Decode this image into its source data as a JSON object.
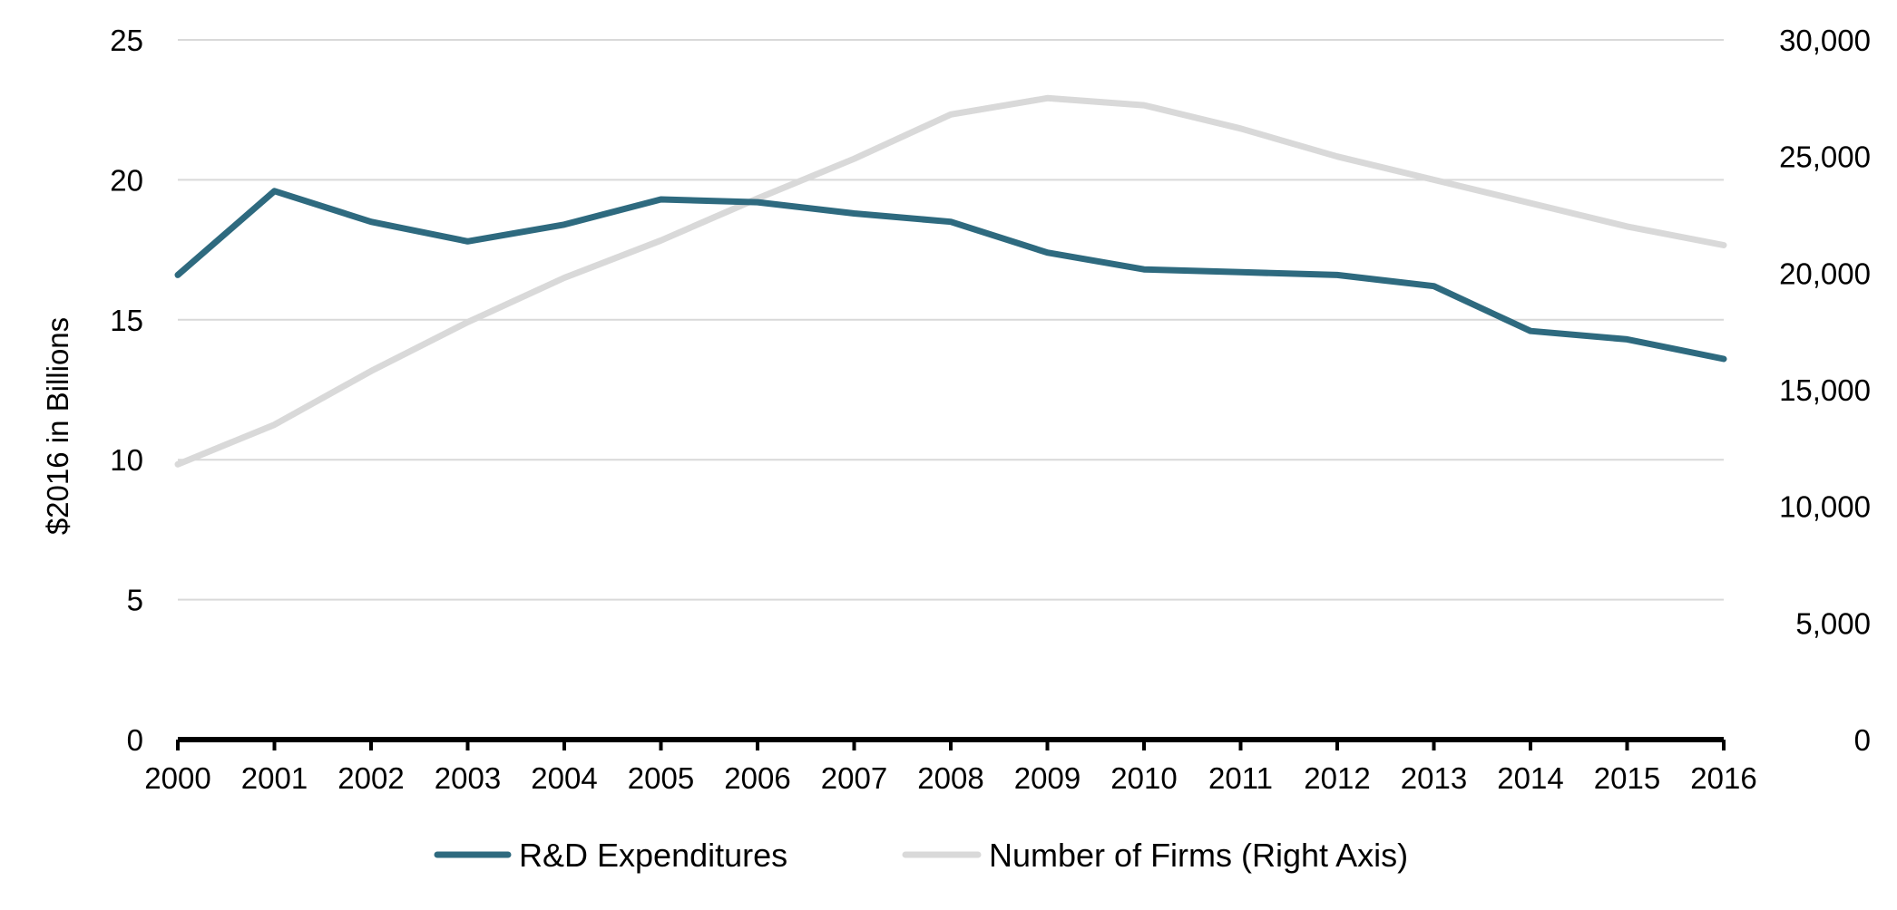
{
  "chart_data": {
    "type": "line",
    "title": "",
    "xlabel": "",
    "ylabel": "$2016 in Billions",
    "ylim": [
      0,
      25
    ],
    "y_ticks": [
      "0",
      "5",
      "10",
      "15",
      "20",
      "25"
    ],
    "y2label": "",
    "y2lim": [
      0,
      30000
    ],
    "y2_ticks": [
      "0",
      "5,000",
      "10,000",
      "15,000",
      "20,000",
      "25,000",
      "30,000"
    ],
    "grid": true,
    "legend_position": "bottom-center",
    "categories": [
      "2000",
      "2001",
      "2002",
      "2003",
      "2004",
      "2005",
      "2006",
      "2007",
      "2008",
      "2009",
      "2010",
      "2011",
      "2012",
      "2013",
      "2014",
      "2015",
      "2016"
    ],
    "series": [
      {
        "name": "R&D Expenditures",
        "axis": "left",
        "color": "#2e6a7f",
        "values": [
          16.6,
          19.6,
          18.5,
          17.8,
          18.4,
          19.3,
          19.2,
          18.8,
          18.5,
          17.4,
          16.8,
          16.7,
          16.6,
          16.2,
          14.6,
          14.3,
          13.6
        ]
      },
      {
        "name": "Number of Firms (Right Axis)",
        "axis": "right",
        "color": "#d9d9d9",
        "values": [
          11800,
          13500,
          15800,
          17900,
          19800,
          21400,
          23200,
          24900,
          26800,
          27500,
          27200,
          26200,
          25000,
          24000,
          23000,
          22000,
          21200
        ]
      }
    ]
  }
}
